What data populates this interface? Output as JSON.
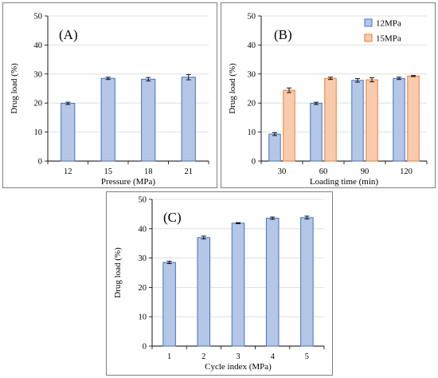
{
  "chart_data": [
    {
      "type": "bar",
      "panel_label": "(A)",
      "xlabel": "Pressure (MPa)",
      "ylabel": "Drug load (%)",
      "ylim": [
        0,
        50
      ],
      "yticks": [
        0,
        10,
        20,
        30,
        40,
        50
      ],
      "categories": [
        "12",
        "15",
        "18",
        "21"
      ],
      "series": [
        {
          "values": [
            19.9,
            28.5,
            28.2,
            28.9
          ],
          "errors": [
            0.4,
            0.4,
            0.6,
            0.9
          ],
          "color": "#b4c7e7",
          "edge": "#4472c4"
        }
      ],
      "grid": true,
      "legend": null
    },
    {
      "type": "bar",
      "panel_label": "(B)",
      "xlabel": "Loading time (min)",
      "ylabel": "Drug load (%)",
      "ylim": [
        0,
        50
      ],
      "yticks": [
        0,
        10,
        20,
        30,
        40,
        50
      ],
      "categories": [
        "30",
        "60",
        "90",
        "120"
      ],
      "series": [
        {
          "name": "12MPa",
          "values": [
            9.3,
            19.9,
            27.8,
            28.5
          ],
          "errors": [
            0.5,
            0.4,
            0.6,
            0.4
          ],
          "color": "#b4c7e7",
          "edge": "#4472c4"
        },
        {
          "name": "15MPa",
          "values": [
            24.4,
            28.5,
            28.0,
            29.3
          ],
          "errors": [
            0.8,
            0.4,
            0.7,
            0.2
          ],
          "color": "#f8cbad",
          "edge": "#ed7d31"
        }
      ],
      "grid": true,
      "legend": "top-right"
    },
    {
      "type": "bar",
      "panel_label": "(C)",
      "xlabel": "Cycle index (MPa)",
      "ylabel": "Drug load (%)",
      "ylim": [
        0,
        50
      ],
      "yticks": [
        0,
        10,
        20,
        30,
        40,
        50
      ],
      "categories": [
        "1",
        "2",
        "3",
        "4",
        "5"
      ],
      "series": [
        {
          "values": [
            28.5,
            37.0,
            41.9,
            43.6,
            43.8
          ],
          "errors": [
            0.4,
            0.5,
            0.2,
            0.4,
            0.5
          ],
          "color": "#b4c7e7",
          "edge": "#4472c4"
        }
      ],
      "grid": true,
      "legend": null
    }
  ]
}
